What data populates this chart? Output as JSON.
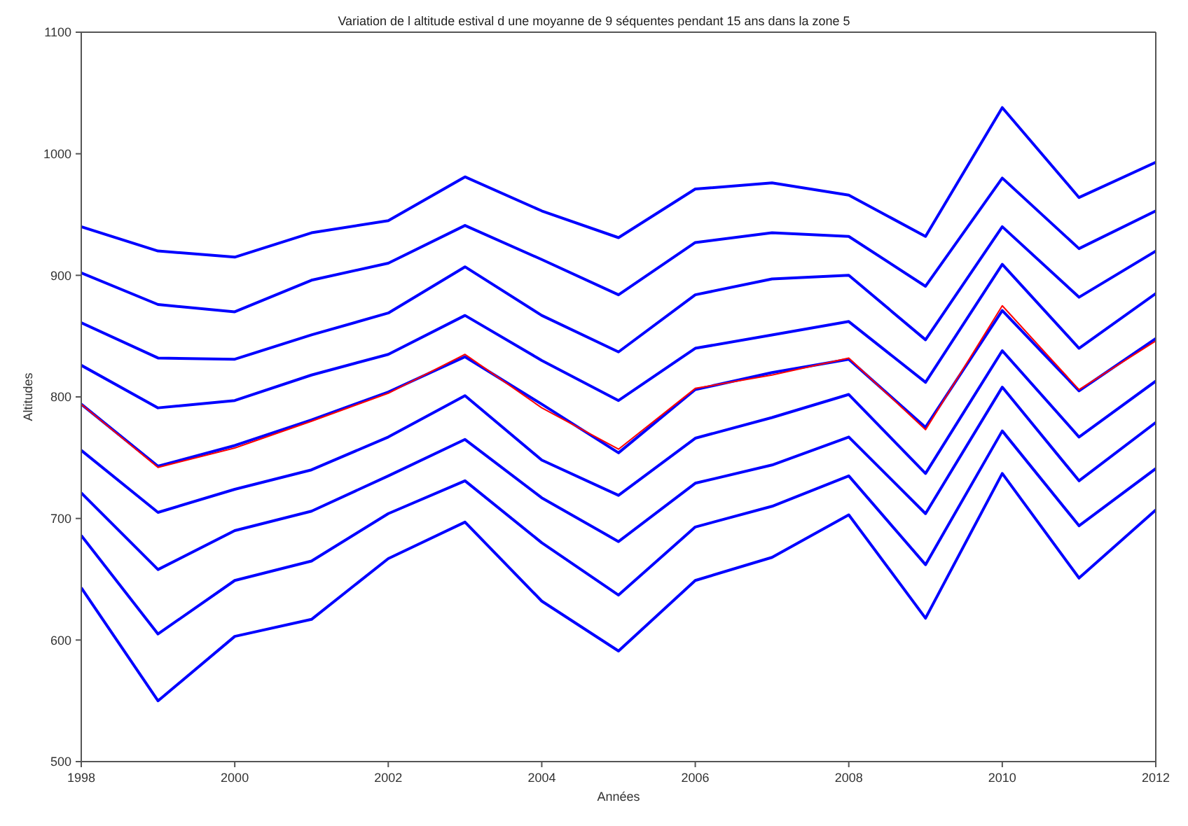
{
  "chart_data": {
    "type": "line",
    "title": "Variation de l altitude estival d une moyanne de 9 séquentes pendant 15 ans dans la zone 5",
    "xlabel": "Années",
    "ylabel": "Altitudes",
    "x": [
      1998,
      1999,
      2000,
      2001,
      2002,
      2003,
      2004,
      2005,
      2006,
      2007,
      2008,
      2009,
      2010,
      2011,
      2012
    ],
    "xlim": [
      1998,
      2012
    ],
    "xticks": [
      1998,
      2000,
      2002,
      2004,
      2006,
      2008,
      2010,
      2012
    ],
    "ylim": [
      500,
      1100
    ],
    "yticks": [
      500,
      600,
      700,
      800,
      900,
      1000,
      1100
    ],
    "grid": false,
    "marker": "none",
    "line_style": "solid",
    "series": [
      {
        "color": "#0000ff",
        "values": [
          940,
          920,
          915,
          935,
          945,
          981,
          953,
          931,
          971,
          976,
          966,
          932,
          1038,
          964,
          993
        ]
      },
      {
        "color": "#0000ff",
        "values": [
          902,
          876,
          870,
          896,
          910,
          941,
          913,
          884,
          927,
          935,
          932,
          891,
          980,
          922,
          953
        ]
      },
      {
        "color": "#0000ff",
        "values": [
          861,
          832,
          831,
          851,
          869,
          907,
          867,
          837,
          884,
          897,
          900,
          847,
          940,
          882,
          920
        ]
      },
      {
        "color": "#0000ff",
        "values": [
          826,
          791,
          797,
          818,
          835,
          867,
          830,
          797,
          840,
          851,
          862,
          812,
          909,
          840,
          885
        ]
      },
      {
        "color": "#0000ff",
        "values": [
          794,
          743,
          760,
          781,
          804,
          833,
          794,
          754,
          806,
          820,
          831,
          775,
          871,
          805,
          848
        ]
      },
      {
        "color": "#0000ff",
        "values": [
          756,
          705,
          724,
          740,
          767,
          801,
          748,
          719,
          766,
          783,
          802,
          737,
          838,
          767,
          813
        ]
      },
      {
        "color": "#0000ff",
        "values": [
          721,
          658,
          690,
          706,
          735,
          765,
          717,
          681,
          729,
          744,
          767,
          704,
          808,
          731,
          779
        ]
      },
      {
        "color": "#0000ff",
        "values": [
          686,
          605,
          649,
          665,
          704,
          731,
          680,
          637,
          693,
          710,
          735,
          662,
          772,
          694,
          741
        ]
      },
      {
        "color": "#0000ff",
        "values": [
          643,
          550,
          603,
          617,
          667,
          697,
          632,
          591,
          649,
          668,
          703,
          618,
          737,
          651,
          707
        ]
      },
      {
        "color": "#ff0000",
        "values": [
          794,
          742,
          758,
          780,
          803,
          835,
          791,
          757,
          807,
          818,
          832,
          773,
          875,
          806,
          846
        ]
      }
    ]
  }
}
